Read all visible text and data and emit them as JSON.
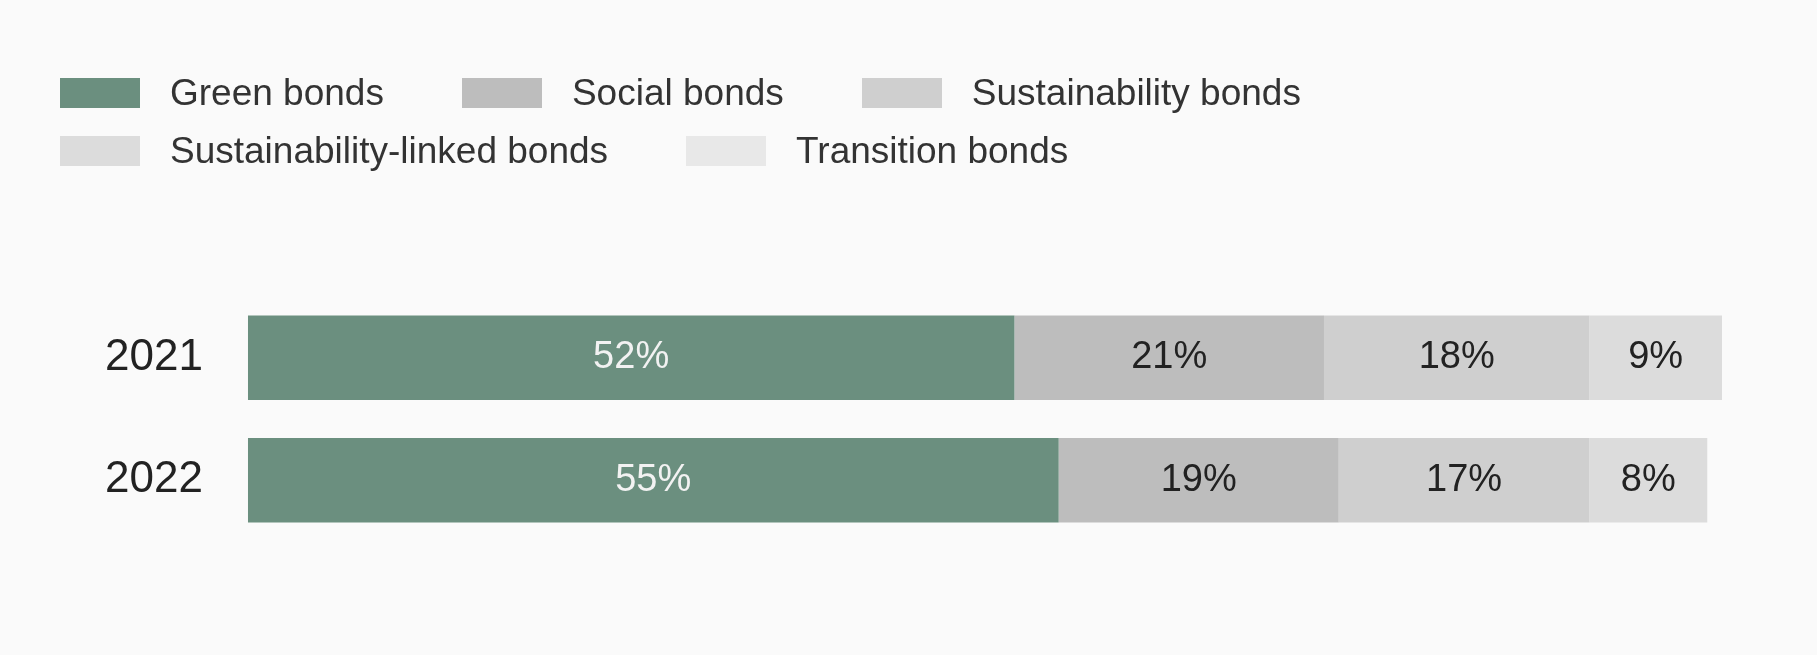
{
  "chart_data": {
    "type": "bar",
    "orientation": "horizontal",
    "stacked": true,
    "legend": "top left",
    "tick_labels": "y",
    "categories": [
      "2021",
      "2022"
    ],
    "xlim": [
      0,
      100
    ],
    "series": [
      {
        "name": "Green bonds",
        "color": "#6b8f7f",
        "values": [
          52,
          55
        ],
        "value_labels": [
          "52%",
          "55%"
        ]
      },
      {
        "name": "Social bonds",
        "color": "#bdbdbd",
        "values": [
          21,
          19
        ],
        "value_labels": [
          "21%",
          "19%"
        ]
      },
      {
        "name": "Sustainability bonds",
        "color": "#cfcfcf",
        "values": [
          18,
          17
        ],
        "value_labels": [
          "18%",
          "17%"
        ]
      },
      {
        "name": "Sustainability-linked bonds",
        "color": "#dcdcdc",
        "values": [
          9,
          8
        ],
        "value_labels": [
          "9%",
          "8%"
        ]
      },
      {
        "name": "Transition bonds",
        "color": "#e8e8e8",
        "values": [
          null,
          null
        ]
      }
    ]
  }
}
